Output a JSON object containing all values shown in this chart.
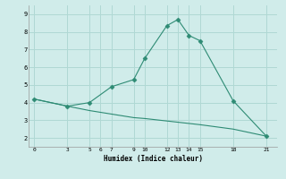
{
  "line1_x": [
    0,
    3,
    5,
    7,
    9,
    10,
    12,
    13,
    14,
    15,
    18,
    21
  ],
  "line1_y": [
    4.2,
    3.8,
    4.0,
    4.9,
    5.3,
    6.5,
    8.35,
    8.7,
    7.8,
    7.5,
    4.1,
    2.1
  ],
  "line2_x": [
    0,
    3,
    5,
    6,
    9,
    10,
    15,
    18,
    21
  ],
  "line2_y": [
    4.2,
    3.8,
    3.55,
    3.45,
    3.15,
    3.1,
    2.75,
    2.5,
    2.1
  ],
  "color": "#2e8b74",
  "bg_color": "#d0ecea",
  "grid_color": "#b0d8d4",
  "xlabel": "Humidex (Indice chaleur)",
  "xticks": [
    0,
    3,
    5,
    6,
    7,
    9,
    10,
    12,
    13,
    14,
    15,
    18,
    21
  ],
  "yticks": [
    2,
    3,
    4,
    5,
    6,
    7,
    8,
    9
  ],
  "ylim": [
    1.5,
    9.5
  ],
  "xlim": [
    -0.5,
    22
  ]
}
